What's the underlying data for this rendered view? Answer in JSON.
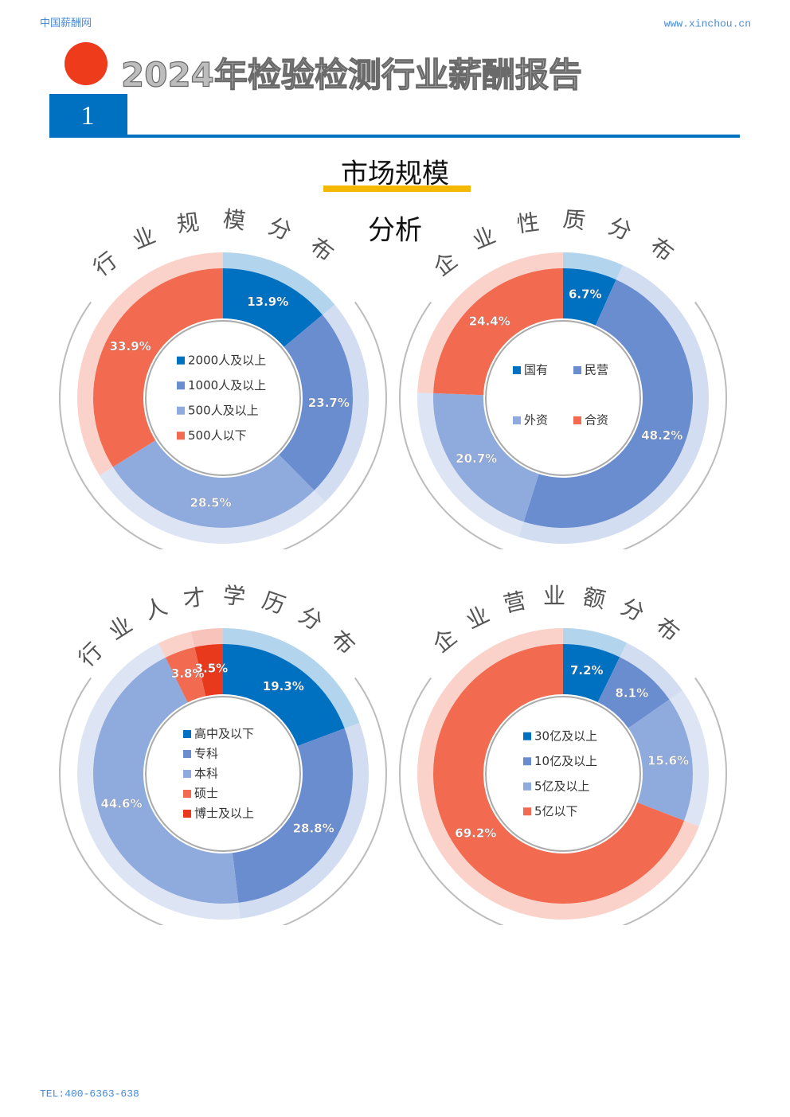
{
  "header": {
    "site": "中国薪酬网",
    "url": "www.xinchou.cn",
    "title": "2024年检验检测行业薪酬报告",
    "page": "1"
  },
  "section": {
    "title": "市场规模",
    "subtitle": "分析"
  },
  "chart_data": [
    {
      "type": "pie",
      "title": "行业规模分布",
      "categories": [
        "2000人及以上",
        "1000人及以上",
        "500人及以上",
        "500人以下"
      ],
      "values": [
        13.9,
        23.7,
        28.5,
        33.9
      ],
      "value_labels": [
        "13.9%",
        "23.7%",
        "28.5%",
        "33.9%"
      ],
      "colors": [
        "#0070c0",
        "#6a8dd0",
        "#8faadc",
        "#f26b50"
      ],
      "legend": "list"
    },
    {
      "type": "pie",
      "title": "企业性质分布",
      "categories": [
        "国有",
        "民营",
        "外资",
        "合资"
      ],
      "values": [
        6.7,
        48.2,
        20.7,
        24.4
      ],
      "value_labels": [
        "6.7%",
        "48.2%",
        "20.7%",
        "24.4%"
      ],
      "colors": [
        "#0070c0",
        "#6a8dd0",
        "#8faadc",
        "#f26b50"
      ],
      "legend": "grid"
    },
    {
      "type": "pie",
      "title": "行业人才学历分布",
      "categories": [
        "高中及以下",
        "专科",
        "本科",
        "硕士",
        "博士及以上"
      ],
      "values": [
        19.3,
        28.8,
        44.6,
        3.8,
        3.5
      ],
      "value_labels": [
        "19.3%",
        "28.8%",
        "44.6%",
        "3.8%",
        "3.5%"
      ],
      "colors": [
        "#0070c0",
        "#6a8dd0",
        "#8faadc",
        "#f26b50",
        "#e8391d"
      ],
      "legend": "list"
    },
    {
      "type": "pie",
      "title": "企业营业额分布",
      "categories": [
        "30亿及以上",
        "10亿及以上",
        "5亿及以上",
        "5亿以下"
      ],
      "values": [
        7.2,
        8.1,
        15.6,
        69.2
      ],
      "value_labels": [
        "7.2%",
        "8.1%",
        "15.6%",
        "69.2%"
      ],
      "colors": [
        "#0070c0",
        "#6a8dd0",
        "#8faadc",
        "#f26b50"
      ],
      "legend": "list"
    }
  ],
  "footer": "TEL:400-6363-638"
}
